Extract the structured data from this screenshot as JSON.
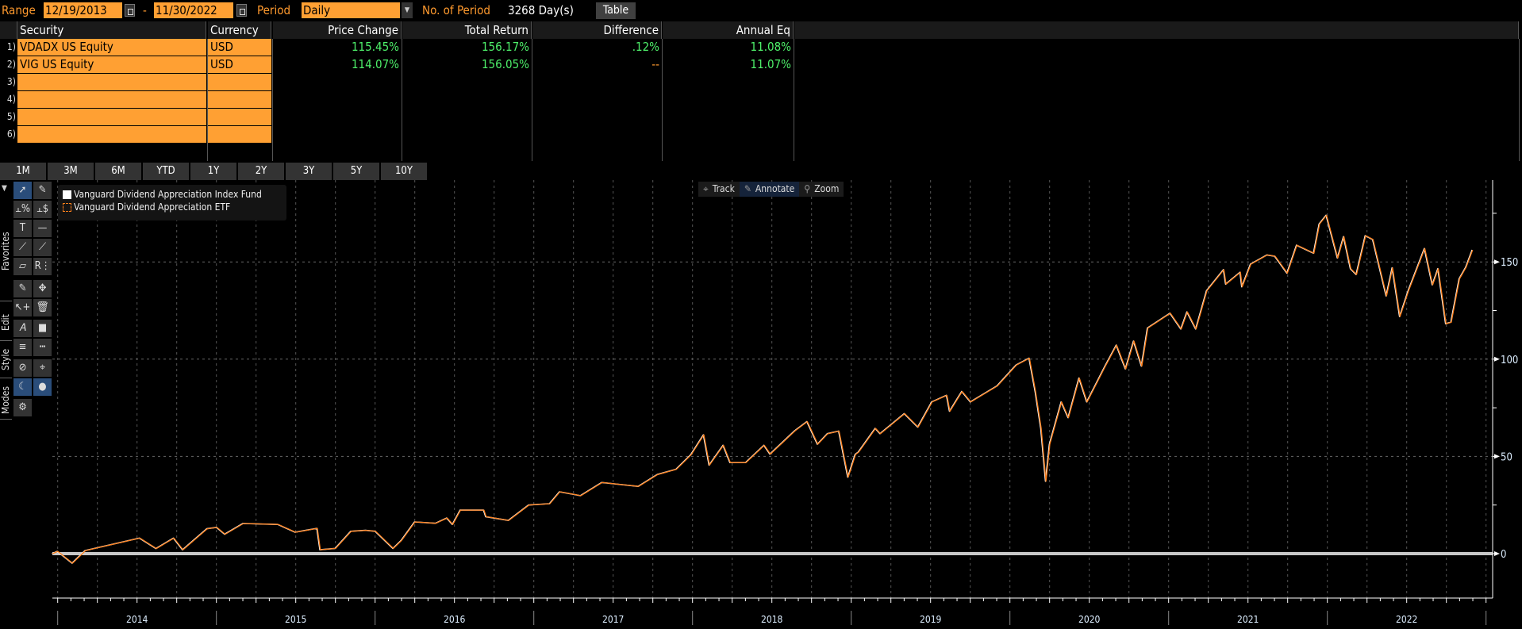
{
  "toolbar": {
    "range_label": "Range",
    "start_date": "12/19/2013",
    "dash": "-",
    "end_date": "11/30/2022",
    "period_label": "Period",
    "period_value": "Daily",
    "num_period_label": "No. of Period",
    "num_period_value": "3268 Day(s)",
    "table_button": "Table"
  },
  "table": {
    "headers": [
      "Security",
      "Currency",
      "Price Change",
      "Total Return",
      "Difference",
      "Annual Eq"
    ],
    "rows": [
      {
        "num": "1)",
        "security": "VDADX US Equity",
        "currency": "USD",
        "price_change": "115.45%",
        "total_return": "156.17%",
        "difference": ".12%",
        "annual_eq": "11.08%"
      },
      {
        "num": "2)",
        "security": "VIG US Equity",
        "currency": "USD",
        "price_change": "114.07%",
        "total_return": "156.05%",
        "difference": "--",
        "annual_eq": "11.07%"
      },
      {
        "num": "3)",
        "security": "",
        "currency": "",
        "price_change": "",
        "total_return": "",
        "difference": "",
        "annual_eq": ""
      },
      {
        "num": "4)",
        "security": "",
        "currency": "",
        "price_change": "",
        "total_return": "",
        "difference": "",
        "annual_eq": ""
      },
      {
        "num": "5)",
        "security": "",
        "currency": "",
        "price_change": "",
        "total_return": "",
        "difference": "",
        "annual_eq": ""
      },
      {
        "num": "6)",
        "security": "",
        "currency": "",
        "price_change": "",
        "total_return": "",
        "difference": "",
        "annual_eq": ""
      }
    ]
  },
  "period_buttons": [
    "1M",
    "3M",
    "6M",
    "YTD",
    "1Y",
    "2Y",
    "3Y",
    "5Y",
    "10Y"
  ],
  "side_tabs": [
    "Favorites",
    "Edit",
    "Style",
    "Modes"
  ],
  "modes": {
    "track": "Track",
    "annotate": "Annotate",
    "zoom": "Zoom"
  },
  "colors": {
    "accent_orange": "#ffa033",
    "value_green": "#4ef06a",
    "series_etf": "#ff7f1a",
    "series_fund": "#ffffff"
  },
  "chart_data": {
    "type": "line",
    "title": "",
    "xlabel": "",
    "ylabel": "",
    "x_tick_labels": [
      "2014",
      "2015",
      "2016",
      "2017",
      "2018",
      "2019",
      "2020",
      "2021",
      "2022"
    ],
    "y_tick_labels": [
      "0",
      "50",
      "100",
      "150"
    ],
    "ylim": [
      -22,
      190
    ],
    "xlim": [
      "2013-12-19",
      "2022-12-31"
    ],
    "grid": true,
    "legend_placement": "top-left",
    "x": [
      "2013-12-19",
      "2013-12-31",
      "2014-02-03",
      "2014-03-05",
      "2014-07-08",
      "2014-08-15",
      "2014-09-24",
      "2014-10-15",
      "2014-12-10",
      "2015-01-01",
      "2015-01-20",
      "2015-03-03",
      "2015-05-22",
      "2015-07-01",
      "2015-08-20",
      "2015-08-27",
      "2015-10-01",
      "2015-11-06",
      "2015-12-10",
      "2016-01-01",
      "2016-02-11",
      "2016-03-01",
      "2016-04-01",
      "2016-05-19",
      "2016-06-14",
      "2016-06-27",
      "2016-07-15",
      "2016-09-07",
      "2016-09-12",
      "2016-11-03",
      "2016-12-20",
      "2017-02-06",
      "2017-03-01",
      "2017-04-18",
      "2017-06-06",
      "2017-07-05",
      "2017-08-29",
      "2017-10-12",
      "2017-11-24",
      "2017-12-28",
      "2018-01-26",
      "2018-02-08",
      "2018-03-12",
      "2018-03-28",
      "2018-05-03",
      "2018-06-14",
      "2018-06-28",
      "2018-08-24",
      "2018-09-21",
      "2018-10-15",
      "2018-11-07",
      "2018-12-03",
      "2018-12-24",
      "2019-01-10",
      "2019-01-17",
      "2019-02-25",
      "2019-03-08",
      "2019-05-03",
      "2019-06-03",
      "2019-07-05",
      "2019-08-08",
      "2019-08-15",
      "2019-09-12",
      "2019-10-02",
      "2019-12-02",
      "2020-01-15",
      "2020-02-14",
      "2020-02-28",
      "2020-03-12",
      "2020-03-23",
      "2020-04-01",
      "2020-04-28",
      "2020-05-14",
      "2020-06-08",
      "2020-06-26",
      "2020-08-07",
      "2020-09-02",
      "2020-09-23",
      "2020-10-12",
      "2020-10-30",
      "2020-11-13",
      "2021-01-04",
      "2021-01-29",
      "2021-02-12",
      "2021-03-04",
      "2021-03-29",
      "2021-05-07",
      "2021-05-12",
      "2021-06-14",
      "2021-06-18",
      "2021-07-08",
      "2021-08-15",
      "2021-09-02",
      "2021-09-30",
      "2021-10-22",
      "2021-11-30",
      "2021-12-13",
      "2021-12-29",
      "2022-01-24",
      "2022-02-07",
      "2022-02-23",
      "2022-03-08",
      "2022-03-29",
      "2022-04-15",
      "2022-05-16",
      "2022-05-30",
      "2022-06-16",
      "2022-07-06",
      "2022-08-12",
      "2022-08-30",
      "2022-09-12",
      "2022-09-30",
      "2022-10-12",
      "2022-10-31",
      "2022-11-15",
      "2022-11-30"
    ],
    "series": [
      {
        "name": "Vanguard Dividend Appreciation Index Fund",
        "color": "#ffffff",
        "values": [
          0,
          1.2,
          -4.9,
          1.6,
          8,
          2.6,
          8,
          2,
          12.8,
          13.5,
          10,
          15.5,
          15,
          11,
          13,
          2,
          2.7,
          11.5,
          12,
          11.5,
          2.7,
          6.8,
          16.3,
          15.6,
          18.3,
          15,
          22.4,
          22.4,
          19,
          17.1,
          25,
          25.7,
          31.8,
          29.8,
          36.6,
          35.9,
          34.6,
          40.7,
          43.4,
          50.9,
          61.1,
          45.5,
          55.7,
          46.8,
          46.8,
          55.7,
          51.2,
          63.2,
          67.9,
          56.3,
          61.7,
          63,
          39.3,
          51,
          52.2,
          64.4,
          61.7,
          72,
          65.1,
          78,
          81.4,
          73.2,
          83.4,
          78,
          86.2,
          97,
          100.5,
          83.4,
          64.4,
          37.2,
          56.3,
          78,
          69.9,
          90.3,
          78,
          96.4,
          107.2,
          95,
          109.3,
          96.4,
          116,
          123.6,
          115.5,
          124.3,
          115.5,
          135.2,
          146,
          138.6,
          144.7,
          137.2,
          148.8,
          153.6,
          152.9,
          144.2,
          158.6,
          154.5,
          169.5,
          174,
          152,
          163,
          146.5,
          143.5,
          163.5,
          161.5,
          132.5,
          147,
          121.9,
          135.3,
          156.9,
          138.2,
          146.5,
          118.2,
          119,
          141.3,
          147.2,
          156.2
        ]
      },
      {
        "name": "Vanguard Dividend Appreciation ETF",
        "color": "#ff7f1a",
        "values": [
          0,
          1.2,
          -4.9,
          1.6,
          8,
          2.6,
          8,
          2,
          12.8,
          13.5,
          10,
          15.5,
          15,
          11,
          13,
          2,
          2.7,
          11.5,
          12,
          11.5,
          2.7,
          6.8,
          16.3,
          15.6,
          18.3,
          15,
          22.4,
          22.4,
          19,
          17.1,
          25,
          25.7,
          31.8,
          29.8,
          36.6,
          35.9,
          34.6,
          40.7,
          43.4,
          50.9,
          61.1,
          45.5,
          55.7,
          46.8,
          46.8,
          55.7,
          51.2,
          63.2,
          67.9,
          56.3,
          61.7,
          63,
          39.3,
          51,
          52.2,
          64.4,
          61.7,
          72,
          65.1,
          78,
          81.4,
          73.2,
          83.4,
          78,
          86.2,
          97,
          100.5,
          83.4,
          64.4,
          37.2,
          56.3,
          78,
          69.9,
          90.3,
          78,
          96.4,
          107.2,
          95,
          109.3,
          96.4,
          116,
          123.6,
          115.5,
          124.3,
          115.5,
          135.2,
          146,
          138.6,
          144.7,
          137.2,
          148.8,
          153.6,
          152.9,
          144.2,
          158.6,
          154.5,
          169.5,
          174,
          152,
          163,
          146.5,
          143.5,
          163.5,
          161.5,
          132.5,
          147,
          121.9,
          135.3,
          156.9,
          138.2,
          146.5,
          118.2,
          119,
          141.3,
          147.2,
          156.1
        ]
      }
    ]
  }
}
